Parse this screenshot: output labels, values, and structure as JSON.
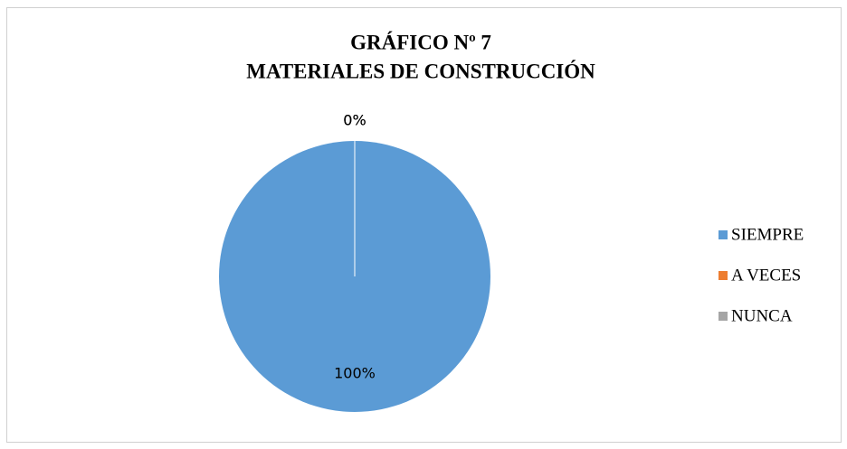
{
  "chart_data": {
    "type": "pie",
    "title": [
      "GRÁFICO Nº 7",
      "MATERIALES DE CONSTRUCCIÓN"
    ],
    "categories": [
      "SIEMPRE",
      "A VECES",
      "NUNCA"
    ],
    "values": [
      100,
      0,
      0
    ],
    "value_labels": [
      "100%",
      "0%",
      "0%"
    ],
    "colors": [
      "#5b9bd5",
      "#ed7d31",
      "#a5a5a5"
    ],
    "legend": "right"
  }
}
